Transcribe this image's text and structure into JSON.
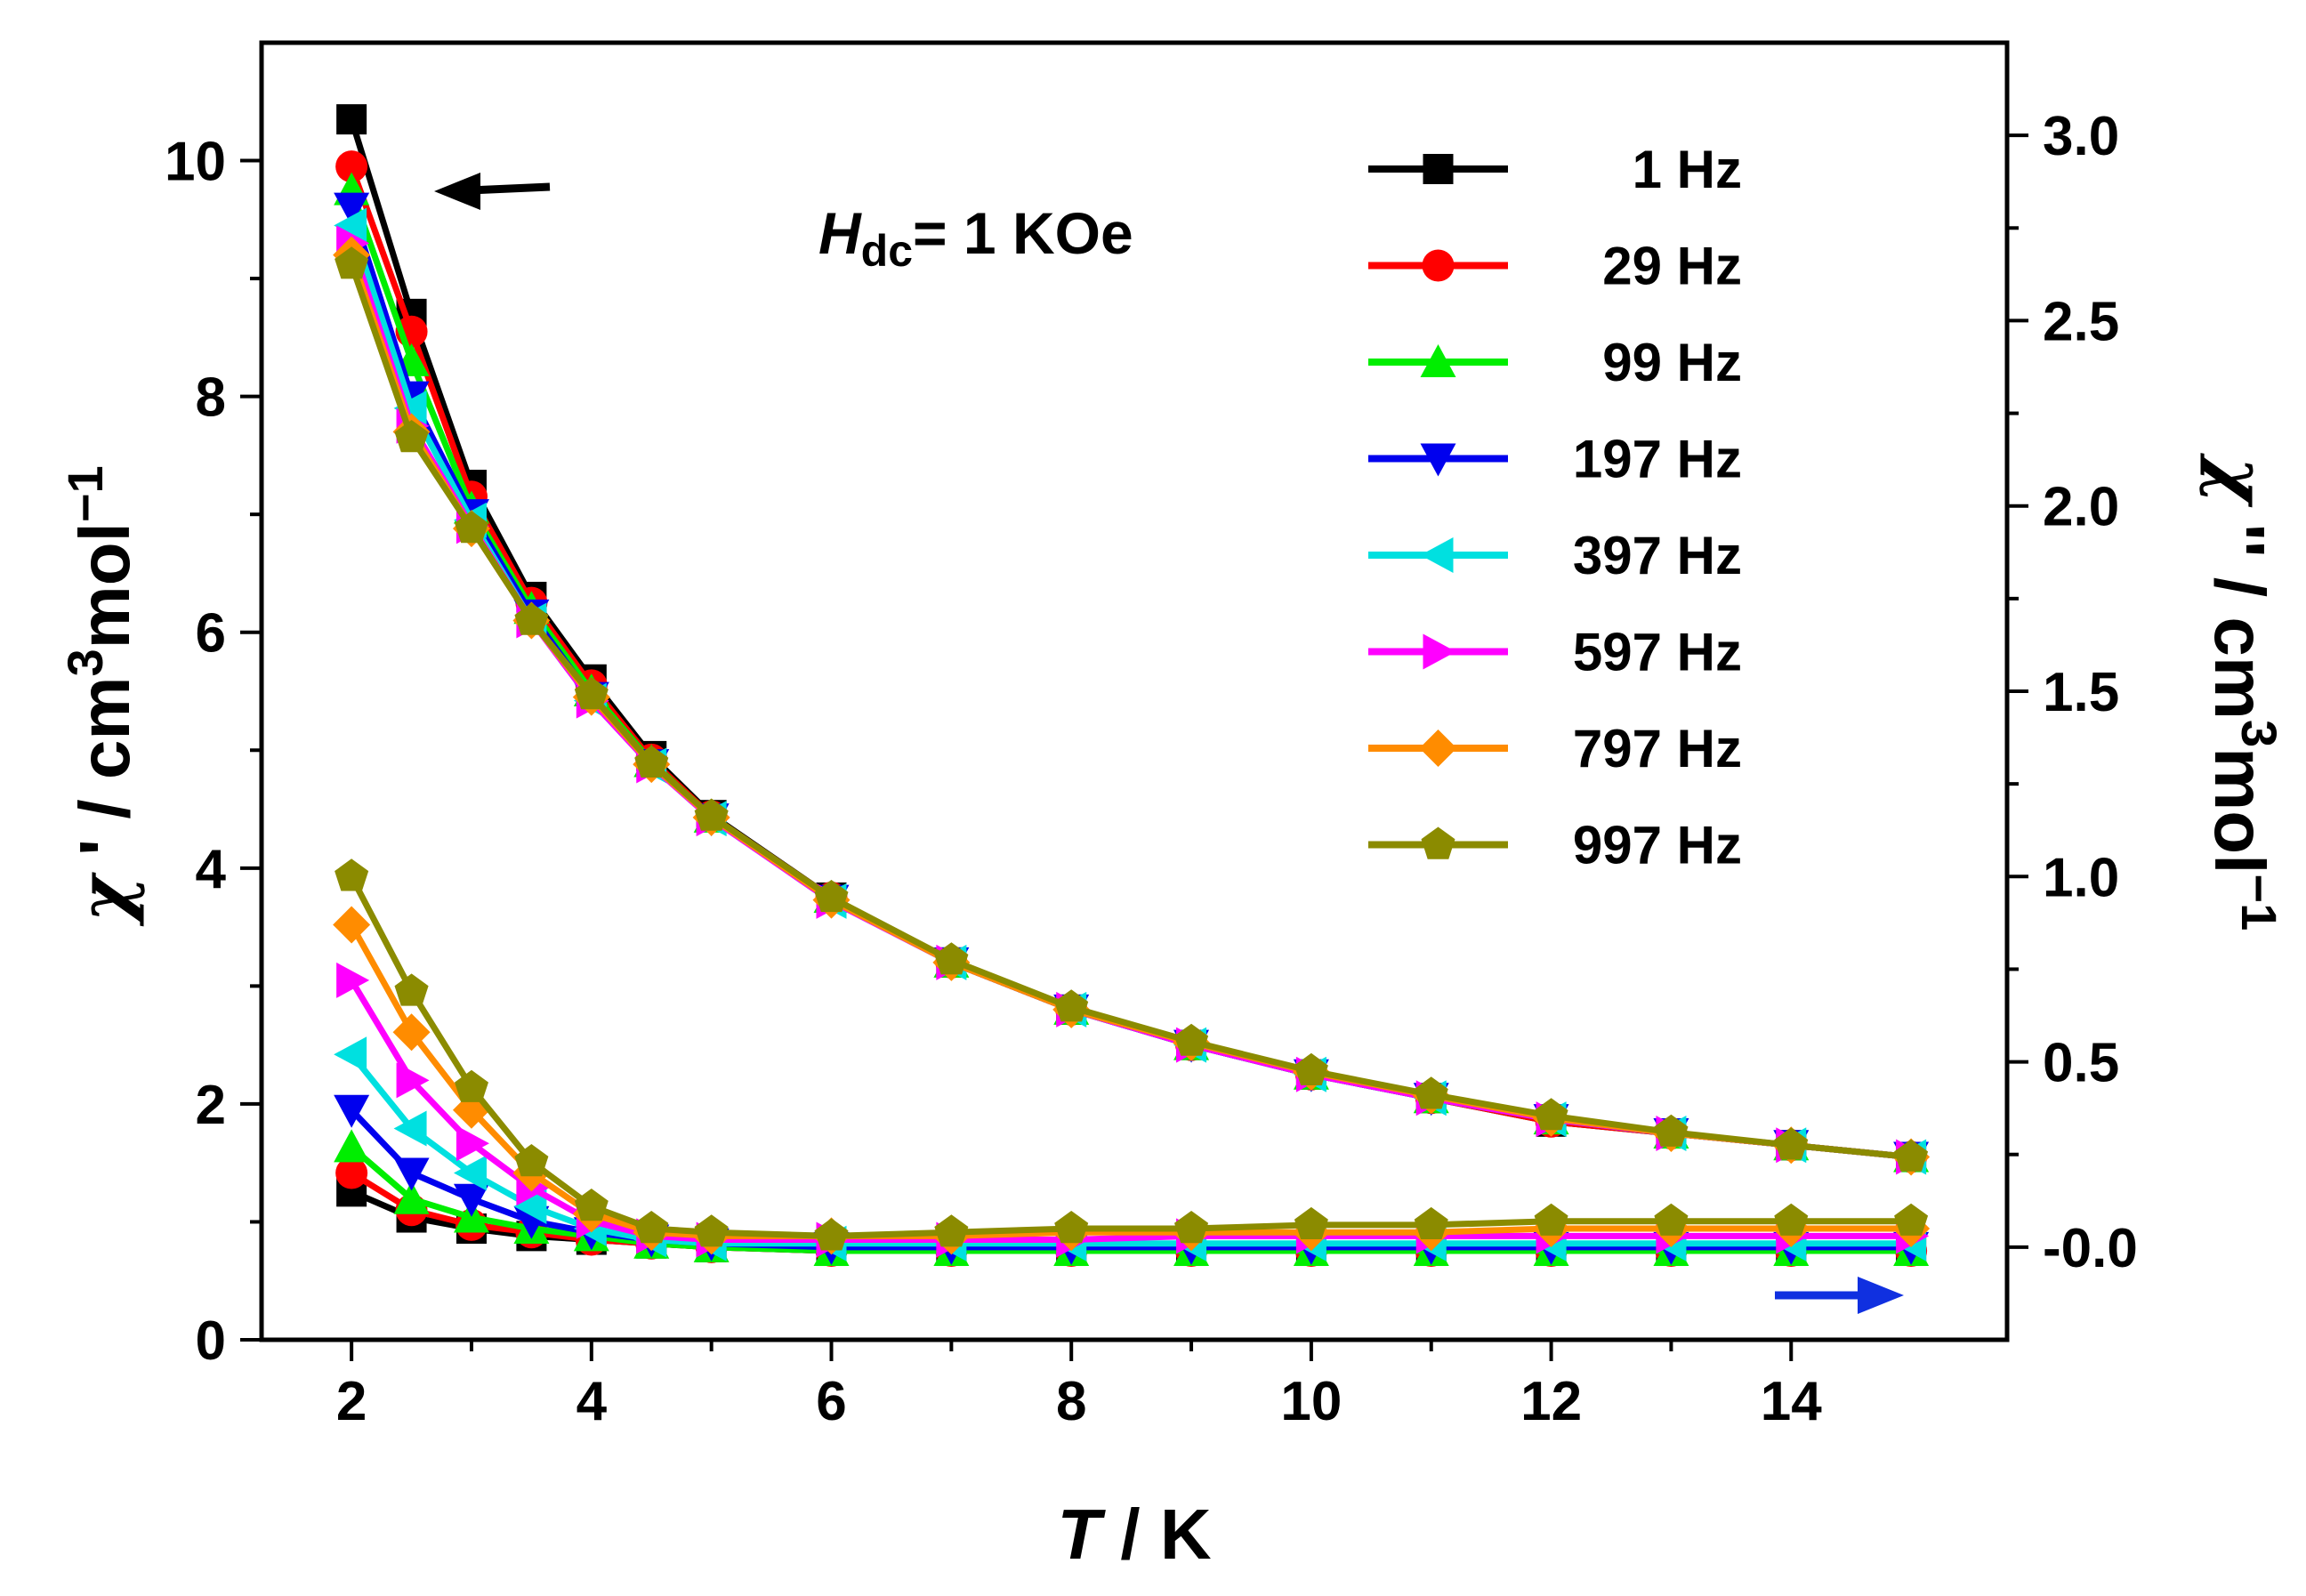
{
  "chart_data": {
    "type": "line",
    "title": "",
    "xlabel": {
      "italic": "T",
      "rest": " / K"
    },
    "ylabel_left": {
      "symbol": "χ",
      "prime": " '",
      "text": " / cm",
      "sup": "3",
      "text2": "mol",
      "sup2": "−1"
    },
    "ylabel_right": {
      "symbol": "χ",
      "prime": " ''",
      "text": " / cm",
      "sup": "3",
      "text2": "mol",
      "sup2": "−1"
    },
    "xlim": [
      1.25,
      15.8
    ],
    "ylim_left": [
      0,
      11.0
    ],
    "ylim_right": [
      -0.25,
      3.25
    ],
    "x_ticks": [
      2,
      4,
      6,
      8,
      10,
      12,
      14
    ],
    "y_left_ticks": [
      0,
      2,
      4,
      6,
      8,
      10
    ],
    "y_right_ticks": [
      "-0.0",
      "0.5",
      "1.0",
      "1.5",
      "2.0",
      "2.5",
      "3.0"
    ],
    "y_right_tick_values": [
      0.0,
      0.5,
      1.0,
      1.5,
      2.0,
      2.5,
      3.0
    ],
    "annotation": {
      "italic": "H",
      "sub": "dc",
      "rest": "= 1 KOe"
    },
    "legend_position": "top-right",
    "temperatures": [
      2,
      2.5,
      3,
      3.5,
      4,
      4.5,
      5,
      6,
      7,
      8,
      9,
      10,
      11,
      12,
      13,
      14,
      15
    ],
    "series": [
      {
        "name": "1 Hz",
        "color": "#000000",
        "marker": "square",
        "chi_prime": [
          10.35,
          8.7,
          7.25,
          6.3,
          5.6,
          4.95,
          4.45,
          3.75,
          3.2,
          2.8,
          2.5,
          2.25,
          2.05,
          1.85,
          1.75,
          1.65,
          1.55
        ],
        "chi_double_prime": [
          0.15,
          0.08,
          0.05,
          0.03,
          0.02,
          0.01,
          0.0,
          -0.01,
          -0.01,
          -0.01,
          -0.01,
          -0.01,
          -0.01,
          -0.01,
          -0.01,
          -0.01,
          -0.01
        ]
      },
      {
        "name": "29 Hz",
        "color": "#ff0000",
        "marker": "circle",
        "chi_prime": [
          9.95,
          8.55,
          7.15,
          6.25,
          5.55,
          4.92,
          4.44,
          3.75,
          3.2,
          2.8,
          2.5,
          2.25,
          2.05,
          1.85,
          1.75,
          1.65,
          1.55
        ],
        "chi_double_prime": [
          0.2,
          0.1,
          0.06,
          0.04,
          0.02,
          0.01,
          0.0,
          -0.01,
          -0.01,
          -0.01,
          -0.01,
          -0.01,
          -0.01,
          -0.01,
          -0.01,
          -0.01,
          -0.01
        ]
      },
      {
        "name": "99 Hz",
        "color": "#00ee00",
        "marker": "triangle-up",
        "chi_prime": [
          9.75,
          8.3,
          7.05,
          6.2,
          5.5,
          4.9,
          4.43,
          3.75,
          3.2,
          2.8,
          2.5,
          2.25,
          2.05,
          1.87,
          1.75,
          1.65,
          1.55
        ],
        "chi_double_prime": [
          0.27,
          0.13,
          0.08,
          0.05,
          0.03,
          0.01,
          0.0,
          -0.01,
          -0.01,
          -0.01,
          -0.01,
          -0.01,
          -0.01,
          -0.01,
          -0.01,
          -0.01,
          -0.01
        ]
      },
      {
        "name": "197 Hz",
        "color": "#0000ee",
        "marker": "triangle-down",
        "chi_prime": [
          9.6,
          8.0,
          7.0,
          6.15,
          5.45,
          4.88,
          4.42,
          3.73,
          3.2,
          2.8,
          2.5,
          2.25,
          2.05,
          1.87,
          1.75,
          1.65,
          1.55
        ],
        "chi_double_prime": [
          0.37,
          0.2,
          0.13,
          0.07,
          0.04,
          0.02,
          0.01,
          0.0,
          0.0,
          0.0,
          0.0,
          0.0,
          0.0,
          0.0,
          0.0,
          0.0,
          0.0
        ]
      },
      {
        "name": "397 Hz",
        "color": "#00e0e0",
        "marker": "triangle-left",
        "chi_prime": [
          9.45,
          7.9,
          6.95,
          6.1,
          5.42,
          4.87,
          4.42,
          3.72,
          3.2,
          2.8,
          2.5,
          2.25,
          2.05,
          1.87,
          1.75,
          1.65,
          1.55
        ],
        "chi_double_prime": [
          0.52,
          0.32,
          0.2,
          0.11,
          0.05,
          0.02,
          0.01,
          0.01,
          0.01,
          0.01,
          0.01,
          0.01,
          0.01,
          0.01,
          0.01,
          0.01,
          0.01
        ]
      },
      {
        "name": "597 Hz",
        "color": "#ff00ff",
        "marker": "triangle-right",
        "chi_prime": [
          9.3,
          7.75,
          6.9,
          6.1,
          5.42,
          4.87,
          4.42,
          3.72,
          3.2,
          2.8,
          2.5,
          2.25,
          2.05,
          1.87,
          1.75,
          1.65,
          1.55
        ],
        "chi_double_prime": [
          0.72,
          0.45,
          0.28,
          0.16,
          0.07,
          0.03,
          0.02,
          0.02,
          0.02,
          0.02,
          0.03,
          0.03,
          0.03,
          0.03,
          0.03,
          0.03,
          0.03
        ]
      },
      {
        "name": "797 Hz",
        "color": "#ff8c00",
        "marker": "diamond",
        "chi_prime": [
          9.2,
          7.7,
          6.88,
          6.1,
          5.45,
          4.88,
          4.43,
          3.73,
          3.2,
          2.8,
          2.52,
          2.27,
          2.07,
          1.88,
          1.75,
          1.65,
          1.55
        ],
        "chi_double_prime": [
          0.87,
          0.58,
          0.37,
          0.2,
          0.09,
          0.04,
          0.03,
          0.03,
          0.03,
          0.04,
          0.04,
          0.04,
          0.04,
          0.05,
          0.05,
          0.05,
          0.05
        ]
      },
      {
        "name": "997 Hz",
        "color": "#8b8b00",
        "marker": "pentagon",
        "chi_prime": [
          9.12,
          7.65,
          6.88,
          6.1,
          5.47,
          4.89,
          4.44,
          3.75,
          3.22,
          2.82,
          2.53,
          2.28,
          2.08,
          1.9,
          1.76,
          1.65,
          1.55
        ],
        "chi_double_prime": [
          1.0,
          0.69,
          0.43,
          0.23,
          0.11,
          0.05,
          0.04,
          0.03,
          0.04,
          0.05,
          0.05,
          0.06,
          0.06,
          0.07,
          0.07,
          0.07,
          0.07
        ]
      }
    ]
  }
}
